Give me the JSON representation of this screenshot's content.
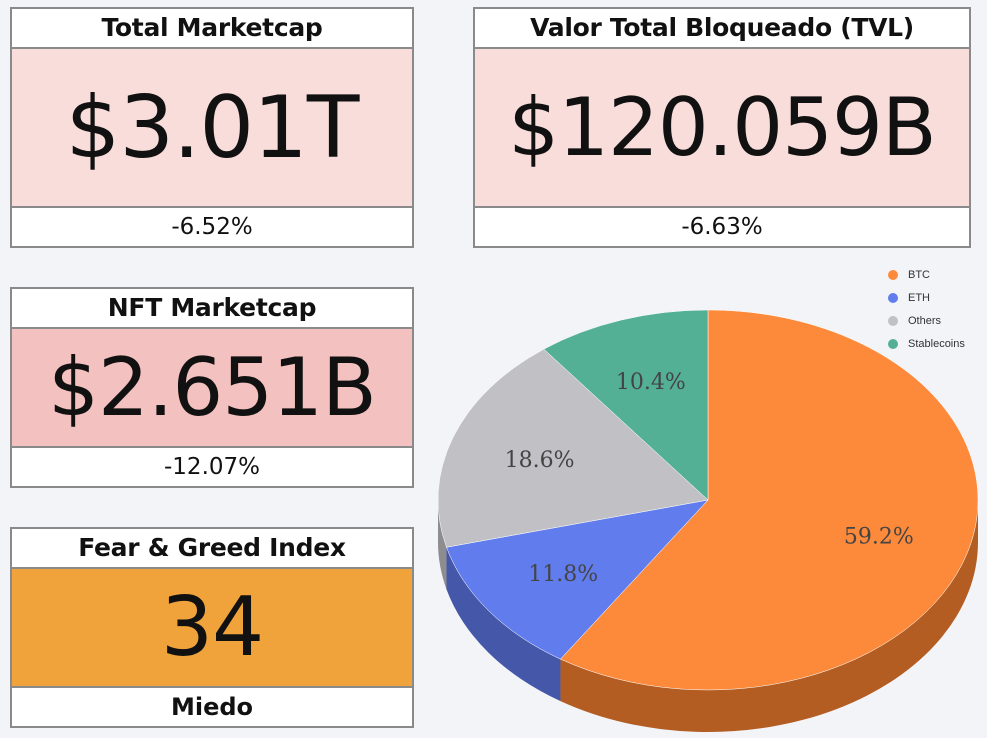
{
  "cards": {
    "marketcap": {
      "title": "Total Marketcap",
      "value": "$3.01T",
      "change": "-6.52%",
      "color": "#f8dddb"
    },
    "tvl": {
      "title": "Valor Total Bloqueado (TVL)",
      "value": "$120.059B",
      "change": "-6.63%",
      "color": "#f8dddb"
    },
    "nft": {
      "title": "NFT Marketcap",
      "value": "$2.651B",
      "change": "-12.07%",
      "color": "#f3c1bf"
    },
    "fng": {
      "title": "Fear & Greed Index",
      "value": "34",
      "label": "Miedo",
      "color": "#f0a33b"
    }
  },
  "chart_data": {
    "type": "pie",
    "title": "",
    "categories": [
      "BTC",
      "ETH",
      "Others",
      "Stablecoins"
    ],
    "values": [
      59.2,
      11.8,
      18.6,
      10.4
    ],
    "labels": [
      "59.2%",
      "11.8%",
      "18.6%",
      "10.4%"
    ],
    "colors": [
      "#fd8a3b",
      "#617ded",
      "#c1c1c5",
      "#54b094"
    ],
    "side_colors": [
      "#b35d23",
      "#4457a9",
      "#8d8d90",
      "#3b7d69"
    ],
    "legend_position": "top-right",
    "three_d": true
  }
}
